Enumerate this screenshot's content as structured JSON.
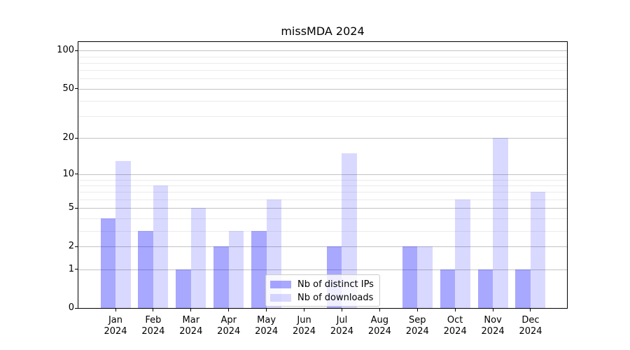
{
  "figure": {
    "title": "missMDA 2024",
    "background": "#ffffff"
  },
  "chart_data": {
    "type": "bar",
    "title": "missMDA 2024",
    "categories": [
      "Jan",
      "Feb",
      "Mar",
      "Apr",
      "May",
      "Jun",
      "Jul",
      "Aug",
      "Sep",
      "Oct",
      "Nov",
      "Dec"
    ],
    "category_year": "2024",
    "series": [
      {
        "name": "Nb of distinct IPs",
        "color": "rgba(0,0,255,0.34)",
        "values": [
          4,
          3,
          1,
          2,
          3,
          0,
          2,
          0,
          2,
          1,
          1,
          1
        ]
      },
      {
        "name": "Nb of downloads",
        "color": "rgba(0,0,255,0.15)",
        "values": [
          13,
          8,
          5,
          3,
          6,
          0,
          15,
          0,
          2,
          6,
          20,
          7
        ]
      }
    ],
    "y_scale": "log10(1+x)",
    "y_ticks": [
      100,
      50,
      20,
      10,
      5,
      2,
      1,
      0
    ],
    "y_minor_gridlines": [
      3,
      4,
      6,
      7,
      8,
      9,
      30,
      40,
      60,
      70,
      80,
      90
    ],
    "ylim": [
      0,
      117
    ],
    "xlabel": "",
    "ylabel": "",
    "grid": "horizontal",
    "legend_position": "lower center"
  },
  "colors": {
    "major_grid": "#c3c3c3",
    "minor_grid": "#ebebeb",
    "spine": "#000000",
    "legend_border": "#cccccc"
  }
}
